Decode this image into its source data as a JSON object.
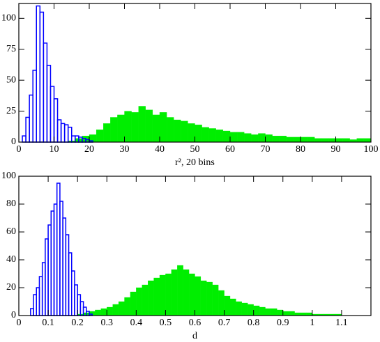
{
  "chart_data": [
    {
      "type": "histogram",
      "xlabel": "r², 20 bins",
      "xlim": [
        0,
        100
      ],
      "ylim": [
        0,
        112
      ],
      "xticks": [
        0,
        10,
        20,
        30,
        40,
        50,
        60,
        70,
        80,
        90,
        100
      ],
      "yticks": [
        0,
        25,
        50,
        75,
        100
      ],
      "series": [
        {
          "color": "#00ee00",
          "filled": true,
          "bins": [
            14,
            16,
            18,
            20,
            22,
            24,
            26,
            28,
            30,
            32,
            34,
            36,
            38,
            40,
            42,
            44,
            46,
            48,
            50,
            52,
            54,
            56,
            58,
            60,
            62,
            64,
            66,
            68,
            70,
            72,
            74,
            76,
            78,
            80,
            82,
            84,
            86,
            88,
            90,
            92,
            94,
            96,
            98,
            100
          ],
          "values": [
            1,
            3,
            5,
            6,
            10,
            15,
            20,
            22,
            25,
            24,
            29,
            26,
            22,
            24,
            20,
            18,
            17,
            15,
            14,
            12,
            11,
            10,
            9,
            8,
            8,
            7,
            6,
            7,
            6,
            5,
            5,
            4,
            4,
            4,
            4,
            3,
            3,
            3,
            3,
            3,
            2,
            3,
            3
          ]
        },
        {
          "color": "#0000ff",
          "filled": false,
          "bins": [
            1,
            2,
            3,
            4,
            5,
            6,
            7,
            8,
            9,
            10,
            11,
            12,
            13,
            14,
            15,
            16,
            17,
            18,
            19,
            20,
            21
          ],
          "values": [
            5,
            20,
            38,
            58,
            110,
            105,
            80,
            62,
            45,
            35,
            18,
            15,
            14,
            12,
            5,
            5,
            4,
            3,
            2,
            1
          ]
        }
      ]
    },
    {
      "type": "histogram",
      "xlabel": "d",
      "xlim": [
        0,
        1.2
      ],
      "ylim": [
        0,
        100
      ],
      "xticks": [
        0,
        0.1,
        0.2,
        0.3,
        0.4,
        0.5,
        0.6,
        0.7,
        0.8,
        0.9,
        1,
        1.1
      ],
      "yticks": [
        0,
        20,
        40,
        60,
        80,
        100
      ],
      "series": [
        {
          "color": "#00ee00",
          "filled": true,
          "bins": [
            0.2,
            0.22,
            0.24,
            0.26,
            0.28,
            0.3,
            0.32,
            0.34,
            0.36,
            0.38,
            0.4,
            0.42,
            0.44,
            0.46,
            0.48,
            0.5,
            0.52,
            0.54,
            0.56,
            0.58,
            0.6,
            0.62,
            0.64,
            0.66,
            0.68,
            0.7,
            0.72,
            0.74,
            0.76,
            0.78,
            0.8,
            0.82,
            0.84,
            0.86,
            0.88,
            0.9,
            0.92,
            0.94,
            0.96,
            0.98,
            1,
            1.02,
            1.04,
            1.06,
            1.08,
            1.1
          ],
          "values": [
            1,
            2,
            3,
            4,
            5,
            6,
            8,
            10,
            13,
            17,
            20,
            22,
            25,
            27,
            29,
            30,
            33,
            36,
            33,
            30,
            28,
            25,
            24,
            22,
            18,
            14,
            12,
            10,
            9,
            8,
            7,
            6,
            5,
            5,
            4,
            3,
            3,
            2,
            2,
            2,
            1,
            1,
            1,
            1,
            1
          ]
        },
        {
          "color": "#0000ff",
          "filled": false,
          "bins": [
            0.04,
            0.05,
            0.06,
            0.07,
            0.08,
            0.09,
            0.1,
            0.11,
            0.12,
            0.13,
            0.14,
            0.15,
            0.16,
            0.17,
            0.18,
            0.19,
            0.2,
            0.21,
            0.22,
            0.23,
            0.24,
            0.25
          ],
          "values": [
            5,
            15,
            20,
            28,
            38,
            55,
            65,
            75,
            80,
            95,
            82,
            70,
            58,
            45,
            32,
            22,
            15,
            10,
            6,
            3,
            1
          ]
        }
      ]
    }
  ]
}
